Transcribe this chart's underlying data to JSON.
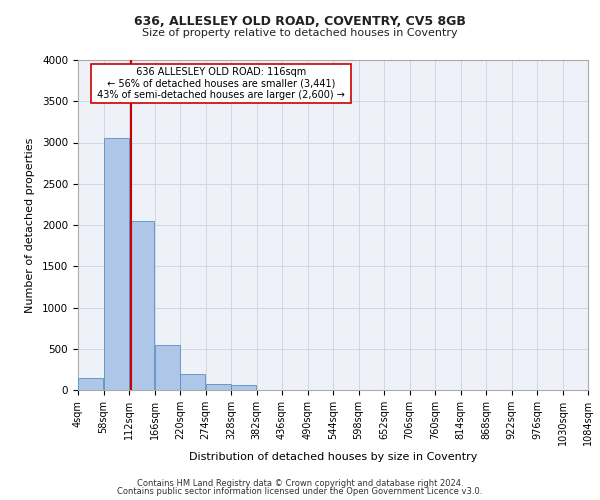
{
  "title1": "636, ALLESLEY OLD ROAD, COVENTRY, CV5 8GB",
  "title2": "Size of property relative to detached houses in Coventry",
  "xlabel": "Distribution of detached houses by size in Coventry",
  "ylabel": "Number of detached properties",
  "annotation_line1": "636 ALLESLEY OLD ROAD: 116sqm",
  "annotation_line2": "← 56% of detached houses are smaller (3,441)",
  "annotation_line3": "43% of semi-detached houses are larger (2,600) →",
  "property_size_sqm": 116,
  "bin_edges": [
    4,
    58,
    112,
    166,
    220,
    274,
    328,
    382,
    436,
    490,
    544,
    598,
    652,
    706,
    760,
    814,
    868,
    922,
    976,
    1030,
    1084
  ],
  "bar_values": [
    150,
    3050,
    2050,
    550,
    200,
    75,
    55,
    0,
    0,
    0,
    0,
    0,
    0,
    0,
    0,
    0,
    0,
    0,
    0,
    0
  ],
  "bar_color": "#aec6e8",
  "bar_edge_color": "#5a8fc0",
  "vline_color": "#cc0000",
  "vline_x": 116,
  "ylim": [
    0,
    4000
  ],
  "yticks": [
    0,
    500,
    1000,
    1500,
    2000,
    2500,
    3000,
    3500,
    4000
  ],
  "grid_color": "#d0d8e8",
  "background_color": "#eef2f8",
  "box_color": "#cc0000",
  "footer1": "Contains HM Land Registry data © Crown copyright and database right 2024.",
  "footer2": "Contains public sector information licensed under the Open Government Licence v3.0."
}
